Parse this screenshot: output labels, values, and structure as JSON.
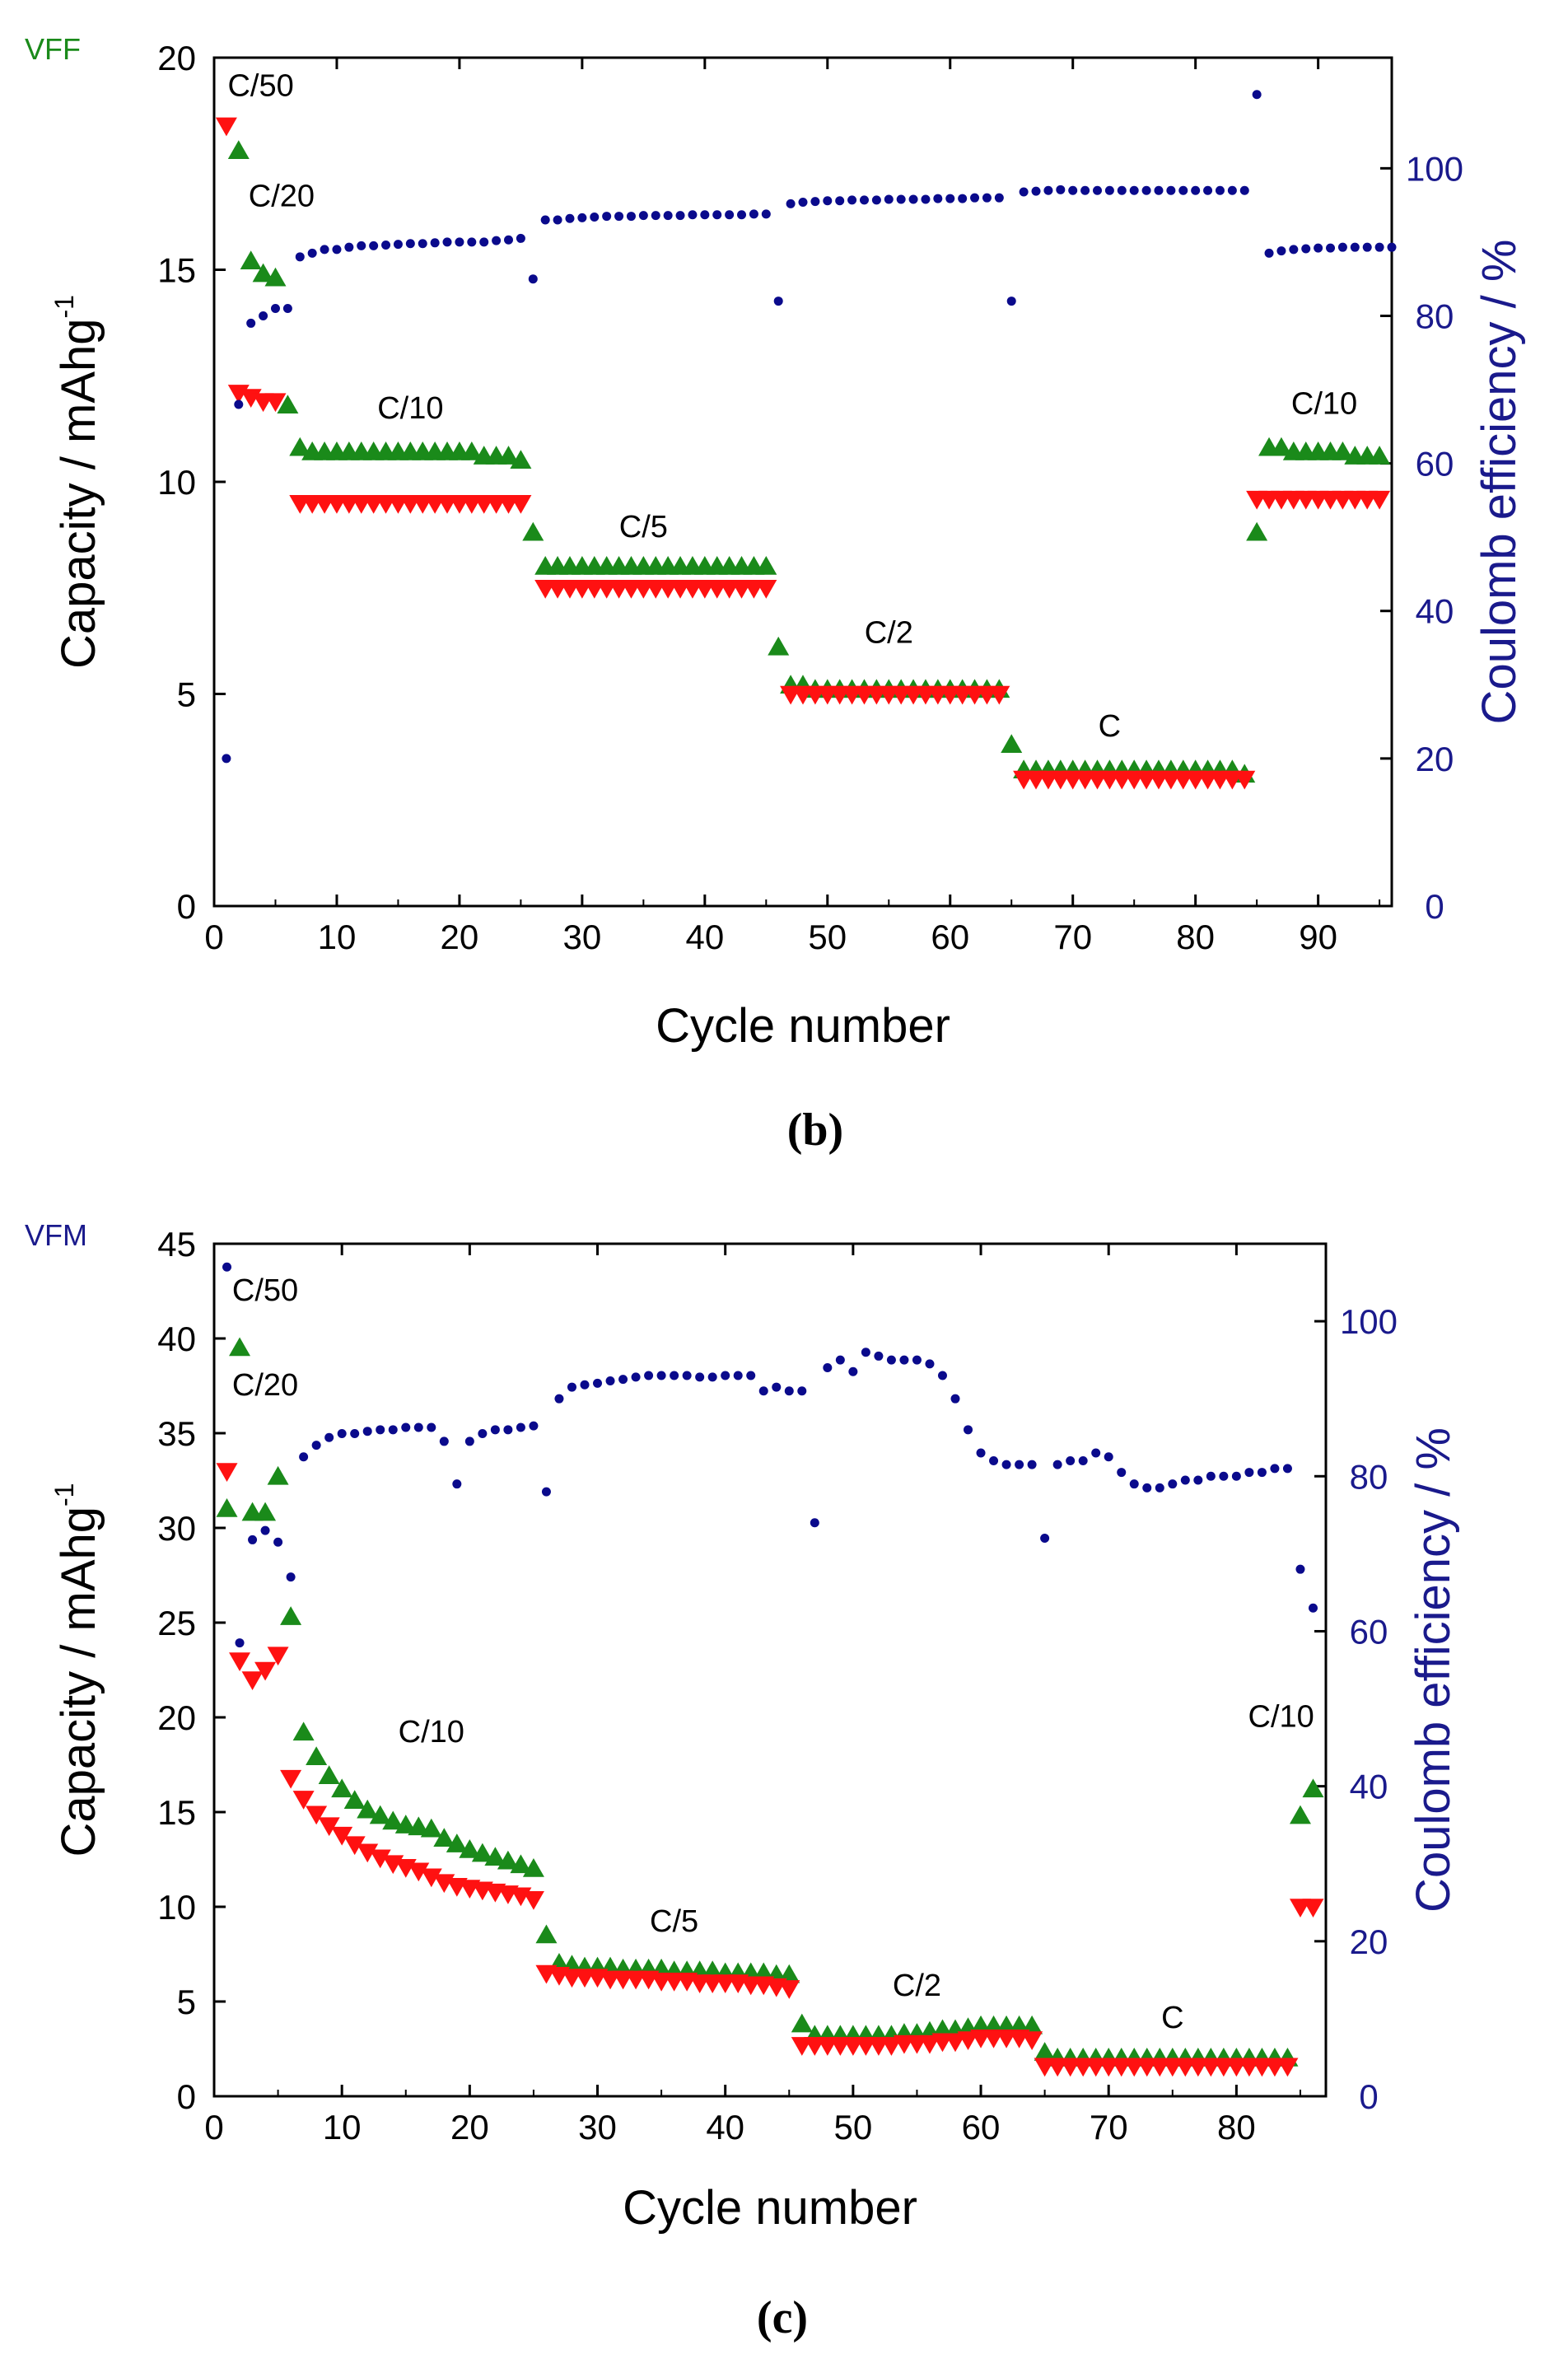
{
  "colors": {
    "charge": "#1a8a1a",
    "discharge": "#ff1111",
    "efficiency": "#0a0a8c",
    "axis": "#000000",
    "right_axis": "#1a1a8c"
  },
  "chart_data": [
    {
      "type": "scatter",
      "id": "b",
      "panel_label": "(b)",
      "sample_label": "VFF",
      "sample_label_color": "#1a8a1a",
      "xlabel": "Cycle number",
      "ylabel": "Capacity / mAhg",
      "ylabel_sup": "-1",
      "y2label": "Coulomb efficiency / %",
      "xlim": [
        0,
        96
      ],
      "ylim": [
        0,
        20
      ],
      "y2lim": [
        0,
        115
      ],
      "xticks": [
        0,
        10,
        20,
        30,
        40,
        50,
        60,
        70,
        80,
        90
      ],
      "yticks": [
        0,
        5,
        10,
        15,
        20
      ],
      "y2ticks": [
        0,
        20,
        40,
        60,
        80,
        100
      ],
      "annotations": [
        {
          "text": "C/50",
          "x": 3.8,
          "y": 19.1
        },
        {
          "text": "C/20",
          "x": 5.5,
          "y": 16.5
        },
        {
          "text": "C/10",
          "x": 16,
          "y": 11.5
        },
        {
          "text": "C/5",
          "x": 35,
          "y": 8.7
        },
        {
          "text": "C/2",
          "x": 55,
          "y": 6.2
        },
        {
          "text": "C",
          "x": 73,
          "y": 4.0
        },
        {
          "text": "C/10",
          "x": 90.5,
          "y": 11.6
        }
      ],
      "series": [
        {
          "name": "charge",
          "marker": "triangle-up",
          "axis": "left",
          "x_start": 1,
          "values": [
            null,
            17.8,
            15.2,
            14.9,
            14.8,
            11.8,
            10.8,
            10.7,
            10.7,
            10.7,
            10.7,
            10.7,
            10.7,
            10.7,
            10.7,
            10.7,
            10.7,
            10.7,
            10.7,
            10.7,
            10.7,
            10.6,
            10.6,
            10.6,
            10.5,
            8.8,
            8.0,
            8.0,
            8.0,
            8.0,
            8.0,
            8.0,
            8.0,
            8.0,
            8.0,
            8.0,
            8.0,
            8.0,
            8.0,
            8.0,
            8.0,
            8.0,
            8.0,
            8.0,
            8.0,
            6.1,
            5.2,
            5.2,
            5.1,
            5.1,
            5.1,
            5.1,
            5.1,
            5.1,
            5.1,
            5.1,
            5.1,
            5.1,
            5.1,
            5.1,
            5.1,
            5.1,
            5.1,
            5.1,
            3.8,
            3.2,
            3.2,
            3.2,
            3.2,
            3.2,
            3.2,
            3.2,
            3.2,
            3.2,
            3.2,
            3.2,
            3.2,
            3.2,
            3.2,
            3.2,
            3.2,
            3.2,
            3.2,
            3.1,
            8.8,
            10.8,
            10.8,
            10.7,
            10.7,
            10.7,
            10.7,
            10.7,
            10.6,
            10.6,
            10.6
          ]
        },
        {
          "name": "discharge",
          "marker": "triangle-down",
          "axis": "left",
          "x_start": 1,
          "values": [
            18.4,
            12.1,
            12.0,
            11.9,
            11.9,
            null,
            9.5,
            9.5,
            9.5,
            9.5,
            9.5,
            9.5,
            9.5,
            9.5,
            9.5,
            9.5,
            9.5,
            9.5,
            9.5,
            9.5,
            9.5,
            9.5,
            9.5,
            9.5,
            9.5,
            null,
            7.5,
            7.5,
            7.5,
            7.5,
            7.5,
            7.5,
            7.5,
            7.5,
            7.5,
            7.5,
            7.5,
            7.5,
            7.5,
            7.5,
            7.5,
            7.5,
            7.5,
            7.5,
            7.5,
            null,
            5.0,
            5.0,
            5.0,
            5.0,
            5.0,
            5.0,
            5.0,
            5.0,
            5.0,
            5.0,
            5.0,
            5.0,
            5.0,
            5.0,
            5.0,
            5.0,
            5.0,
            5.0,
            null,
            3.0,
            3.0,
            3.0,
            3.0,
            3.0,
            3.0,
            3.0,
            3.0,
            3.0,
            3.0,
            3.0,
            3.0,
            3.0,
            3.0,
            3.0,
            3.0,
            3.0,
            3.0,
            3.0,
            9.6,
            9.6,
            9.6,
            9.6,
            9.6,
            9.6,
            9.6,
            9.6,
            9.6,
            9.6,
            9.6
          ]
        },
        {
          "name": "efficiency",
          "marker": "circle",
          "axis": "right",
          "x_start": 1,
          "values": [
            20,
            68,
            79,
            80,
            81,
            81,
            88,
            88.5,
            89,
            89,
            89.3,
            89.5,
            89.5,
            89.6,
            89.7,
            89.8,
            89.8,
            89.9,
            90,
            90,
            90,
            90,
            90.2,
            90.3,
            90.5,
            85,
            93,
            93,
            93.2,
            93.3,
            93.4,
            93.5,
            93.5,
            93.5,
            93.6,
            93.6,
            93.6,
            93.6,
            93.7,
            93.7,
            93.7,
            93.7,
            93.7,
            93.8,
            93.8,
            82,
            95.2,
            95.4,
            95.5,
            95.6,
            95.6,
            95.7,
            95.7,
            95.7,
            95.8,
            95.8,
            95.8,
            95.8,
            95.9,
            95.9,
            95.9,
            96,
            96,
            96,
            82,
            96.8,
            96.9,
            97,
            97.1,
            97,
            97,
            97,
            97,
            97,
            97,
            97,
            97,
            97,
            97,
            97,
            97,
            97,
            97,
            97,
            110,
            88.5,
            88.8,
            89,
            89.1,
            89.2,
            89.2,
            89.3,
            89.3,
            89.3,
            89.3,
            89.3
          ]
        }
      ]
    },
    {
      "type": "scatter",
      "id": "c",
      "panel_label": "(c)",
      "sample_label": "VFM",
      "sample_label_color": "#1a1a8c",
      "xlabel": "Cycle number",
      "ylabel": "Capacity / mAhg",
      "ylabel_sup": "-1",
      "y2label": "Coulomb efficiency / %",
      "xlim": [
        0,
        87
      ],
      "ylim": [
        0,
        45
      ],
      "y2lim": [
        0,
        110
      ],
      "xticks": [
        0,
        10,
        20,
        30,
        40,
        50,
        60,
        70,
        80
      ],
      "yticks": [
        0,
        5,
        10,
        15,
        20,
        25,
        30,
        35,
        40,
        45
      ],
      "y2ticks": [
        0,
        20,
        40,
        60,
        80,
        100
      ],
      "annotations": [
        {
          "text": "C/50",
          "x": 4,
          "y": 42.0
        },
        {
          "text": "C/20",
          "x": 4,
          "y": 37.0
        },
        {
          "text": "C/10",
          "x": 17,
          "y": 18.7
        },
        {
          "text": "C/5",
          "x": 36,
          "y": 8.7
        },
        {
          "text": "C/2",
          "x": 55,
          "y": 5.3
        },
        {
          "text": "C",
          "x": 75,
          "y": 3.6
        },
        {
          "text": "C/10",
          "x": 83.5,
          "y": 19.5
        }
      ],
      "series": [
        {
          "name": "charge",
          "marker": "triangle-up",
          "axis": "left",
          "x_start": 1,
          "values": [
            31,
            39.5,
            30.8,
            30.8,
            32.7,
            25.3,
            19.2,
            17.9,
            16.9,
            16.2,
            15.6,
            15.1,
            14.8,
            14.5,
            14.3,
            14.2,
            14.1,
            13.6,
            13.3,
            13.0,
            12.8,
            12.6,
            12.4,
            12.2,
            12.0,
            8.5,
            7.0,
            6.9,
            6.8,
            6.8,
            6.8,
            6.7,
            6.7,
            6.7,
            6.7,
            6.6,
            6.6,
            6.6,
            6.6,
            6.5,
            6.5,
            6.5,
            6.5,
            6.4,
            6.4,
            3.8,
            3.2,
            3.2,
            3.2,
            3.2,
            3.2,
            3.2,
            3.2,
            3.3,
            3.3,
            3.4,
            3.5,
            3.5,
            3.6,
            3.7,
            3.7,
            3.7,
            3.7,
            3.7,
            2.3,
            2.0,
            2.0,
            2.0,
            2.0,
            2.0,
            2.0,
            2.0,
            2.0,
            2.0,
            2.0,
            2.0,
            2.0,
            2.0,
            2.0,
            2.0,
            2.0,
            2.0,
            2.0,
            2.0,
            14.8,
            16.2
          ]
        },
        {
          "name": "discharge",
          "marker": "triangle-down",
          "axis": "left",
          "x_start": 1,
          "values": [
            33.0,
            23.0,
            22.0,
            22.5,
            23.3,
            16.8,
            15.7,
            14.9,
            14.3,
            13.8,
            13.3,
            12.9,
            12.6,
            12.3,
            12.1,
            11.9,
            11.6,
            11.3,
            11.1,
            11.0,
            10.9,
            10.8,
            10.7,
            10.6,
            10.4,
            6.5,
            6.4,
            6.3,
            6.3,
            6.3,
            6.2,
            6.2,
            6.2,
            6.2,
            6.1,
            6.1,
            6.1,
            6.0,
            6.0,
            6.0,
            6.0,
            5.9,
            5.9,
            5.8,
            5.7,
            2.7,
            2.7,
            2.7,
            2.7,
            2.7,
            2.7,
            2.7,
            2.7,
            2.8,
            2.8,
            2.8,
            2.9,
            2.9,
            3.0,
            3.1,
            3.1,
            3.1,
            3.1,
            3.0,
            1.6,
            1.6,
            1.6,
            1.6,
            1.6,
            1.6,
            1.6,
            1.6,
            1.6,
            1.6,
            1.6,
            1.6,
            1.6,
            1.6,
            1.6,
            1.6,
            1.6,
            1.6,
            1.6,
            1.6,
            10.0,
            10.0
          ]
        },
        {
          "name": "efficiency",
          "marker": "circle",
          "axis": "right",
          "x_start": 1,
          "values": [
            107,
            58.5,
            71.8,
            73,
            71.5,
            67,
            82.5,
            84,
            85,
            85.5,
            85.5,
            85.8,
            86,
            86,
            86.3,
            86.3,
            86.3,
            84.5,
            79,
            84.5,
            85.5,
            86,
            86,
            86.3,
            86.5,
            78,
            90,
            91.5,
            91.8,
            92,
            92.3,
            92.5,
            92.8,
            93,
            93,
            93,
            93,
            92.8,
            92.8,
            93,
            93,
            93,
            91,
            91.5,
            91,
            91,
            74,
            94,
            95,
            93.5,
            96,
            95.5,
            95,
            95,
            95,
            94.5,
            93,
            90,
            86,
            83,
            82,
            81.5,
            81.5,
            81.5,
            72,
            81.5,
            82,
            82,
            83,
            82.5,
            80.5,
            79,
            78.5,
            78.5,
            79,
            79.5,
            79.5,
            80,
            80,
            80,
            80.5,
            80.5,
            81,
            81,
            68,
            63
          ]
        }
      ]
    }
  ]
}
